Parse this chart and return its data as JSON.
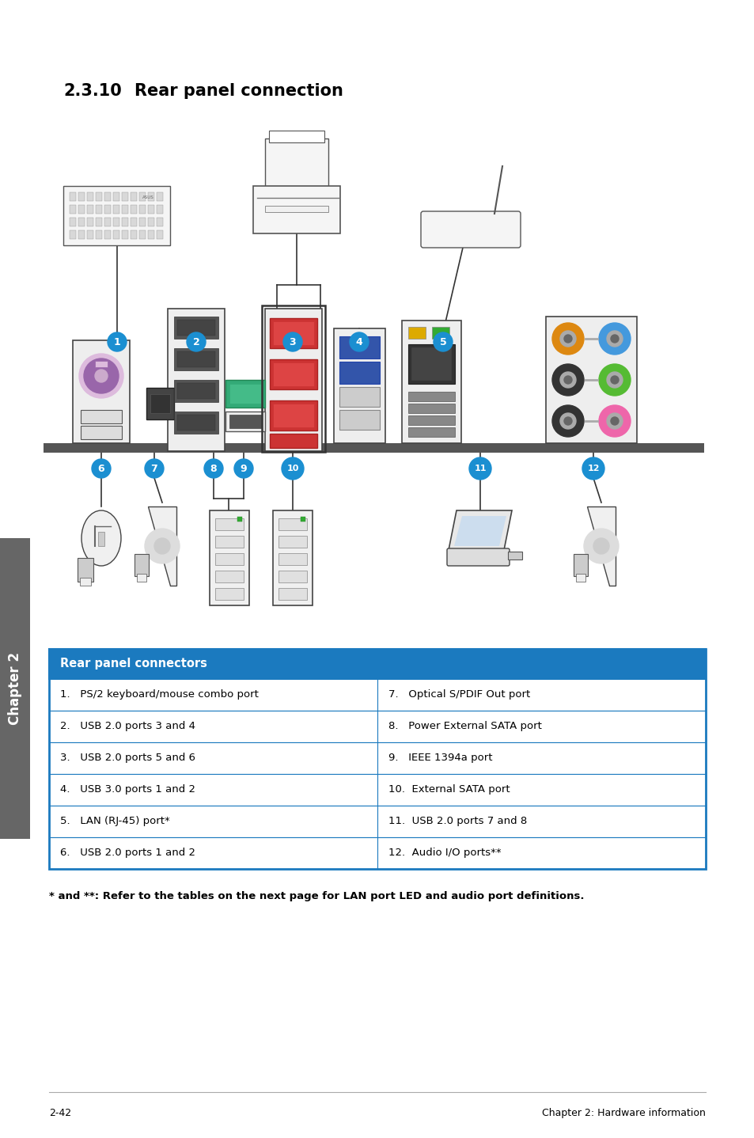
{
  "title_number": "2.3.10",
  "title_text": "Rear panel connection",
  "title_fontsize": 15,
  "background_color": "#ffffff",
  "sidebar_color": "#666666",
  "sidebar_text": "Chapter 2",
  "sidebar_text_color": "#ffffff",
  "table_header": "Rear panel connectors",
  "table_header_bg": "#1b7abf",
  "table_header_color": "#ffffff",
  "table_border_color": "#1b7abf",
  "table_rows": [
    [
      "1.   PS/2 keyboard/mouse combo port",
      "7.   Optical S/PDIF Out port"
    ],
    [
      "2.   USB 2.0 ports 3 and 4",
      "8.   Power External SATA port"
    ],
    [
      "3.   USB 2.0 ports 5 and 6",
      "9.   IEEE 1394a port"
    ],
    [
      "4.   USB 3.0 ports 1 and 2",
      "10.  External SATA port"
    ],
    [
      "5.   LAN (RJ-45) port*",
      "11.  USB 2.0 ports 7 and 8"
    ],
    [
      "6.   USB 2.0 ports 1 and 2",
      "12.  Audio I/O ports**"
    ]
  ],
  "footnote": "* and **: Refer to the tables on the next page for LAN port LED and audio port definitions.",
  "footer_left": "2-42",
  "footer_right": "Chapter 2: Hardware information",
  "circle_color": "#1b8fd1",
  "circle_text_color": "#ffffff"
}
